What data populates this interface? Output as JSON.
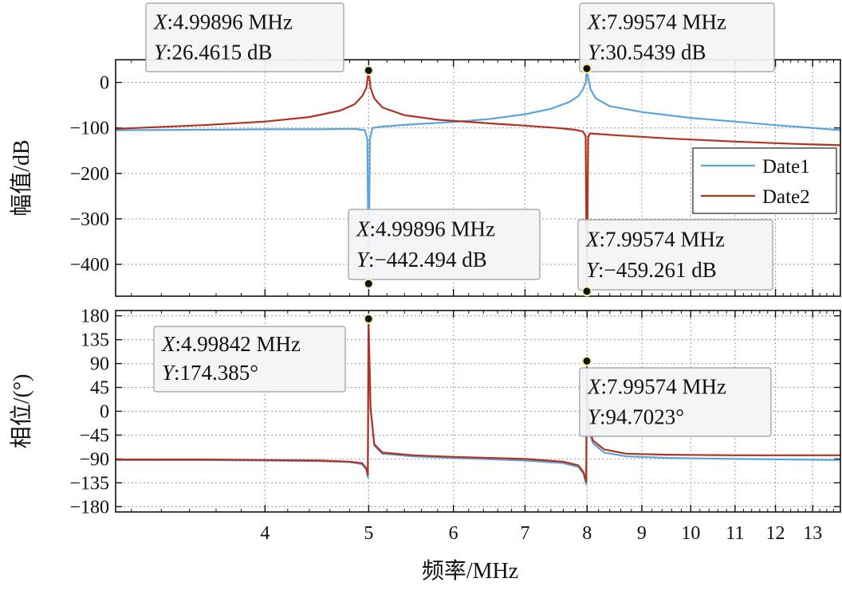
{
  "chart_data": [
    {
      "type": "line",
      "panel": "magnitude",
      "ylabel": "幅值/dB",
      "ylim": [
        -470,
        50
      ],
      "yticks": [
        0,
        -100,
        -200,
        -300,
        -400
      ],
      "ytick_labels": [
        "0",
        "−100",
        "−200",
        "−300",
        "−400"
      ],
      "xscale": "log",
      "xlim": [
        2.9,
        13.8
      ],
      "grid": true,
      "legend_position": "right",
      "series": [
        {
          "name": "Date1",
          "color": "#5aa3dc",
          "x": [
            2.9,
            3.5,
            4.0,
            4.5,
            4.85,
            4.96,
            4.985,
            4.999,
            5.013,
            5.04,
            5.15,
            5.5,
            6.0,
            6.5,
            7.0,
            7.4,
            7.7,
            7.85,
            7.93,
            7.975,
            7.996,
            8.02,
            8.06,
            8.15,
            8.4,
            9.0,
            10.0,
            11.0,
            12.0,
            13.0,
            13.8
          ],
          "y": [
            -105,
            -104,
            -103,
            -103,
            -102,
            -105,
            -125,
            -442.494,
            -125,
            -100,
            -97,
            -92,
            -87,
            -80,
            -70,
            -58,
            -43,
            -30,
            -15,
            0,
            30.5439,
            10,
            -15,
            -35,
            -52,
            -65,
            -78,
            -86,
            -94,
            -100,
            -105
          ]
        },
        {
          "name": "Date2",
          "color": "#b3311f",
          "x": [
            2.9,
            3.5,
            4.0,
            4.4,
            4.7,
            4.85,
            4.93,
            4.975,
            4.999,
            5.02,
            5.06,
            5.15,
            5.4,
            5.8,
            6.5,
            7.0,
            7.5,
            7.8,
            7.93,
            7.975,
            7.996,
            8.02,
            8.05,
            8.15,
            8.5,
            9.5,
            11.0,
            12.5,
            13.8
          ],
          "y": [
            -102,
            -94,
            -86,
            -76,
            -62,
            -48,
            -30,
            -12,
            26.4615,
            -12,
            -35,
            -55,
            -72,
            -82,
            -90,
            -95,
            -100,
            -104,
            -108,
            -118,
            -459.261,
            -120,
            -112,
            -113,
            -116,
            -123,
            -130,
            -135,
            -138
          ]
        }
      ],
      "datatips": [
        {
          "x_text": "4.99896 MHz",
          "y_text": "26.4615 dB",
          "x": 4.99896,
          "y": 26.4615
        },
        {
          "x_text": "7.99574 MHz",
          "y_text": "30.5439 dB",
          "x": 7.99574,
          "y": 30.5439
        },
        {
          "x_text": "4.99896 MHz",
          "y_text": "−442.494 dB",
          "x": 4.99896,
          "y": -442.494
        },
        {
          "x_text": "7.99574 MHz",
          "y_text": "−459.261 dB",
          "x": 7.99574,
          "y": -459.261
        }
      ]
    },
    {
      "type": "line",
      "panel": "phase",
      "ylabel": "相位/(°)",
      "xlabel": "频率/MHz",
      "ylim": [
        -190,
        190
      ],
      "yticks": [
        180,
        135,
        90,
        45,
        0,
        -45,
        -90,
        -135,
        -180
      ],
      "ytick_labels": [
        "180",
        "135",
        "90",
        "45",
        "0",
        "−45",
        "−90",
        "−135",
        "−180"
      ],
      "xscale": "log",
      "xlim": [
        2.9,
        13.8
      ],
      "xticks": [
        4,
        5,
        6,
        7,
        8,
        9,
        10,
        11,
        12,
        13
      ],
      "xtick_labels": [
        "4",
        "5",
        "6",
        "7",
        "8",
        "9",
        "10",
        "11",
        "12",
        "13"
      ],
      "grid": true,
      "series": [
        {
          "name": "Date1",
          "color": "#5aa3dc",
          "x": [
            2.9,
            3.5,
            4.0,
            4.5,
            4.8,
            4.93,
            4.975,
            4.99,
            4.9984,
            5.005,
            5.02,
            5.06,
            5.15,
            5.5,
            6.0,
            7.0,
            7.6,
            7.85,
            7.94,
            7.985,
            7.996,
            8.005,
            8.03,
            8.1,
            8.3,
            8.7,
            9.5,
            11.0,
            12.5,
            13.8
          ],
          "y": [
            -92,
            -92,
            -93,
            -94,
            -96,
            -100,
            -110,
            -125,
            174.385,
            120,
            10,
            -65,
            -80,
            -85,
            -88,
            -93,
            -98,
            -105,
            -118,
            -138,
            90,
            40,
            -35,
            -60,
            -78,
            -85,
            -88,
            -90,
            -91,
            -92
          ]
        },
        {
          "name": "Date2",
          "color": "#b3311f",
          "x": [
            2.9,
            3.5,
            4.0,
            4.5,
            4.8,
            4.93,
            4.975,
            4.99,
            4.9984,
            5.005,
            5.02,
            5.06,
            5.15,
            5.5,
            6.0,
            7.0,
            7.6,
            7.85,
            7.94,
            7.985,
            7.99574,
            8.005,
            8.03,
            8.1,
            8.3,
            8.7,
            9.5,
            11.0,
            12.5,
            13.8
          ],
          "y": [
            -91,
            -91,
            -92,
            -93,
            -95,
            -98,
            -108,
            -120,
            170,
            115,
            5,
            -62,
            -78,
            -83,
            -86,
            -90,
            -95,
            -102,
            -115,
            -133,
            94.7023,
            45,
            -30,
            -55,
            -72,
            -80,
            -82,
            -83,
            -83,
            -83
          ]
        }
      ],
      "datatips": [
        {
          "x_text": "4.99842 MHz",
          "y_text": "174.385°",
          "x": 4.99842,
          "y": 174.385
        },
        {
          "x_text": "7.99574 MHz",
          "y_text": "94.7023°",
          "x": 7.99574,
          "y": 94.7023
        }
      ]
    }
  ]
}
